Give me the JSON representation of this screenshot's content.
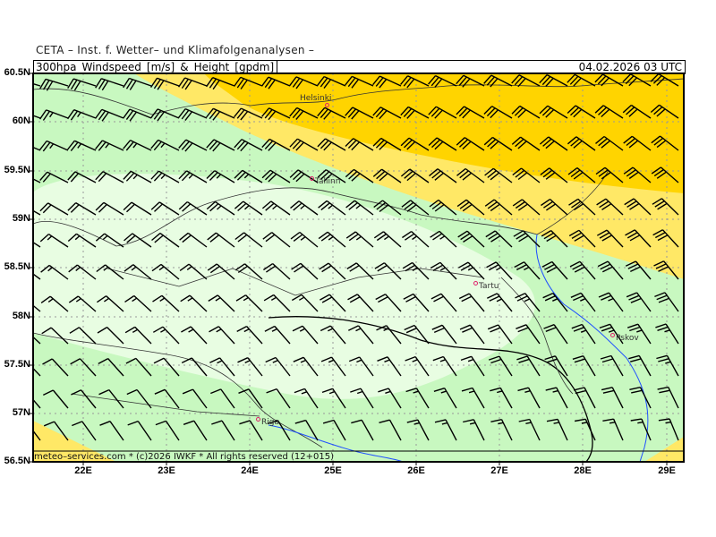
{
  "header": {
    "institute": "CETA – Inst. f. Wetter– und Klimafolgenanalysen –",
    "title": "300hpa_Windspeed_[m/s]_&_Height_[gpdm]",
    "datetime": "04.02.2026 03 UTC"
  },
  "footer": "meteo–services.com * (c)2026 IWKF * All rights reserved (12+015)",
  "axes": {
    "lat_ticks": [
      "60.5N",
      "60N",
      "59.5N",
      "59N",
      "58.5N",
      "58N",
      "57.5N",
      "57N",
      "56.5N"
    ],
    "lon_ticks": [
      "22E",
      "23E",
      "24E",
      "25E",
      "26E",
      "27E",
      "28E",
      "29E"
    ]
  },
  "cities": [
    {
      "name": "Helsinki"
    },
    {
      "name": "Tallinn"
    },
    {
      "name": "Tartu"
    },
    {
      "name": "Pskov"
    },
    {
      "name": "Riga"
    }
  ],
  "colors": {
    "strong_wind": "#FFD400",
    "moderate_wind": "#FFE866",
    "light_wind": "#C8F8C0",
    "weak_wind": "#E8FDE2",
    "city_marker": "#E0206A",
    "river": "#2050FF"
  }
}
